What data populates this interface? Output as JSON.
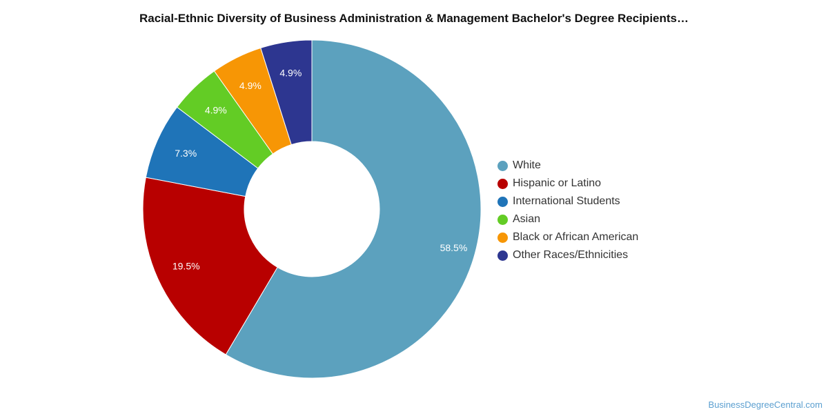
{
  "chart_data": {
    "type": "pie",
    "donut": true,
    "title": "Racial-Ethnic Diversity of Business Administration & Management Bachelor's Degree Recipients…",
    "series": [
      {
        "values": [
          58.5,
          19.5,
          7.3,
          4.9,
          4.9,
          4.9
        ]
      }
    ],
    "categories": [
      "White",
      "Hispanic or Latino",
      "International Students",
      "Asian",
      "Black or African American",
      "Other Races/Ethnicities"
    ],
    "data_labels": [
      "58.5%",
      "19.5%",
      "7.3%",
      "4.9%",
      "4.9%",
      "4.9%"
    ],
    "colors": [
      "#5ca1be",
      "#b80000",
      "#1f74b8",
      "#63cc25",
      "#f79605",
      "#2d3690"
    ],
    "legend_position": "right",
    "start_angle_deg": 0,
    "direction": "clockwise"
  },
  "source_credit": "BusinessDegreeCentral.com"
}
